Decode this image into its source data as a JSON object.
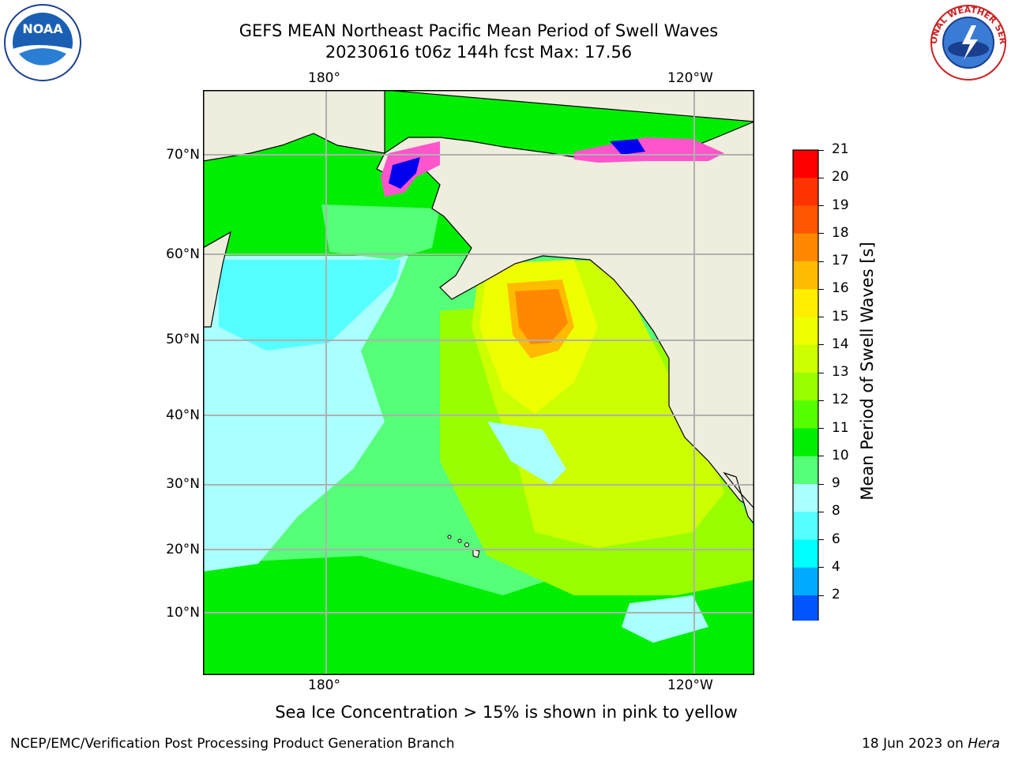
{
  "title": {
    "line1": "GEFS MEAN Northeast Pacific Mean Period of Swell Waves",
    "line2": "20230616 t06z 144h fcst   Max: 17.56"
  },
  "map": {
    "lon_ticks_top": [
      "180°",
      "120°W"
    ],
    "lon_ticks_bottom": [
      "180°",
      "120°W"
    ],
    "lat_ticks": [
      "70°N",
      "60°N",
      "50°N",
      "40°N",
      "30°N",
      "20°N",
      "10°N"
    ]
  },
  "colorbar": {
    "title": "Mean Period of Swell Waves [s]",
    "ticks": [
      "21",
      "20",
      "19",
      "18",
      "17",
      "16",
      "15",
      "14",
      "13",
      "12",
      "11",
      "10",
      "9",
      "8",
      "6",
      "4",
      "2"
    ],
    "colors": [
      "#ff0000",
      "#ff3300",
      "#ff5500",
      "#ff8800",
      "#ffbb00",
      "#ffee00",
      "#eeff00",
      "#ccff00",
      "#99ff00",
      "#55ff00",
      "#00ee00",
      "#55ff77",
      "#aaffff",
      "#55ffff",
      "#00ffff",
      "#00aaff",
      "#0055ff"
    ],
    "extend_color": "#0000ff"
  },
  "note": "Sea Ice Concentration > 15% is shown in pink to yellow",
  "footer": {
    "left": "NCEP/EMC/Verification Post Processing Product Generation Branch",
    "date": "18 Jun 2023 on ",
    "machine": "Hera"
  },
  "logos": {
    "noaa": "NOAA",
    "nws_ring": "NATIONAL WEATHER SERVICE"
  }
}
